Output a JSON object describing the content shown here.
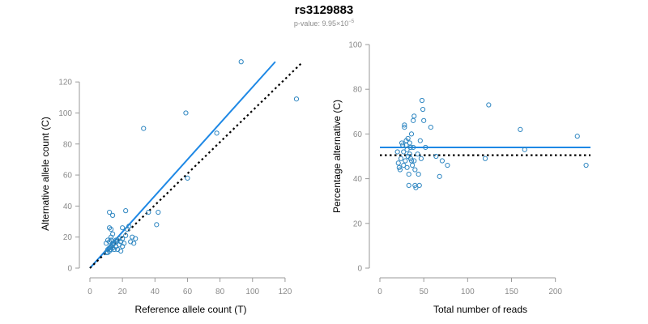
{
  "title": "rs3129883",
  "subtitle": {
    "prefix": "p-value: 9.95×10",
    "exponent": "−5"
  },
  "colors": {
    "points": "#2e86c1",
    "fit": "#1e88e5",
    "reference": "#000000",
    "axis": "#9a9a9a",
    "tick_text": "#8a8a8a"
  },
  "chart_data": [
    {
      "type": "scatter",
      "xlabel": "Reference allele count (T)",
      "ylabel": "Alternative allele count (C)",
      "xlim": [
        0,
        130
      ],
      "ylim": [
        0,
        130
      ],
      "xticks": [
        0,
        20,
        40,
        60,
        80,
        100,
        120
      ],
      "yticks": [
        0,
        20,
        40,
        60,
        80,
        100,
        120
      ],
      "grid": false,
      "points": [
        [
          10,
          10
        ],
        [
          11,
          10
        ],
        [
          11,
          12
        ],
        [
          12,
          13
        ],
        [
          12,
          11
        ],
        [
          13,
          14
        ],
        [
          13,
          12
        ],
        [
          14,
          15
        ],
        [
          14,
          13
        ],
        [
          15,
          12
        ],
        [
          15,
          16
        ],
        [
          16,
          17
        ],
        [
          12,
          17
        ],
        [
          11,
          18
        ],
        [
          13,
          18
        ],
        [
          14,
          16
        ],
        [
          16,
          14
        ],
        [
          17,
          18
        ],
        [
          18,
          15
        ],
        [
          18,
          19
        ],
        [
          19,
          17
        ],
        [
          20,
          14
        ],
        [
          20,
          19
        ],
        [
          21,
          16
        ],
        [
          10,
          16
        ],
        [
          13,
          20
        ],
        [
          14,
          22
        ],
        [
          16,
          18
        ],
        [
          17,
          12
        ],
        [
          19,
          11
        ],
        [
          20,
          26
        ],
        [
          22,
          21
        ],
        [
          23,
          25
        ],
        [
          24,
          27
        ],
        [
          12,
          36
        ],
        [
          13,
          25
        ],
        [
          12,
          26
        ],
        [
          14,
          34
        ],
        [
          22,
          37
        ],
        [
          25,
          17
        ],
        [
          26,
          20
        ],
        [
          27,
          16
        ],
        [
          28,
          19
        ],
        [
          33,
          90
        ],
        [
          36,
          36
        ],
        [
          41,
          28
        ],
        [
          42,
          36
        ],
        [
          59,
          100
        ],
        [
          60,
          58
        ],
        [
          78,
          87
        ],
        [
          93,
          133
        ],
        [
          127,
          109
        ]
      ],
      "lines": [
        {
          "kind": "fit",
          "style": "solid",
          "from": [
            0,
            0
          ],
          "to": [
            114,
            133
          ]
        },
        {
          "kind": "reference",
          "style": "dotted",
          "from": [
            0,
            0
          ],
          "to": [
            130,
            132
          ]
        }
      ]
    },
    {
      "type": "scatter",
      "xlabel": "Total number of reads",
      "ylabel": "Percentage alternative (C)",
      "xlim": [
        0,
        240
      ],
      "ylim": [
        0,
        100
      ],
      "xticks": [
        0,
        50,
        100,
        150,
        200
      ],
      "yticks": [
        0,
        20,
        40,
        60,
        80,
        100
      ],
      "grid": false,
      "points": [
        [
          20,
          52
        ],
        [
          21,
          47
        ],
        [
          22,
          45
        ],
        [
          23,
          44
        ],
        [
          24,
          49
        ],
        [
          25,
          56
        ],
        [
          26,
          55
        ],
        [
          27,
          52
        ],
        [
          27,
          46
        ],
        [
          28,
          63
        ],
        [
          28,
          64
        ],
        [
          29,
          48
        ],
        [
          30,
          57
        ],
        [
          30,
          55
        ],
        [
          31,
          53
        ],
        [
          31,
          45
        ],
        [
          32,
          58
        ],
        [
          32,
          50
        ],
        [
          33,
          42
        ],
        [
          33,
          37
        ],
        [
          34,
          56
        ],
        [
          34,
          51
        ],
        [
          35,
          49
        ],
        [
          35,
          54
        ],
        [
          36,
          48
        ],
        [
          36,
          60
        ],
        [
          37,
          46
        ],
        [
          38,
          66
        ],
        [
          38,
          54
        ],
        [
          39,
          68
        ],
        [
          39,
          48
        ],
        [
          40,
          44
        ],
        [
          40,
          37
        ],
        [
          41,
          36
        ],
        [
          43,
          51
        ],
        [
          44,
          42
        ],
        [
          45,
          37
        ],
        [
          46,
          57
        ],
        [
          47,
          49
        ],
        [
          48,
          75
        ],
        [
          49,
          71
        ],
        [
          50,
          66
        ],
        [
          52,
          54
        ],
        [
          58,
          63
        ],
        [
          64,
          50
        ],
        [
          68,
          41
        ],
        [
          71,
          48
        ],
        [
          77,
          46
        ],
        [
          120,
          49
        ],
        [
          124,
          73
        ],
        [
          160,
          62
        ],
        [
          165,
          53
        ],
        [
          225,
          59
        ],
        [
          235,
          46
        ]
      ],
      "lines": [
        {
          "kind": "fit",
          "style": "solid",
          "from": [
            0,
            54
          ],
          "to": [
            240,
            54
          ]
        },
        {
          "kind": "reference",
          "style": "dotted",
          "from": [
            0,
            50.5
          ],
          "to": [
            240,
            50.5
          ]
        }
      ]
    }
  ]
}
